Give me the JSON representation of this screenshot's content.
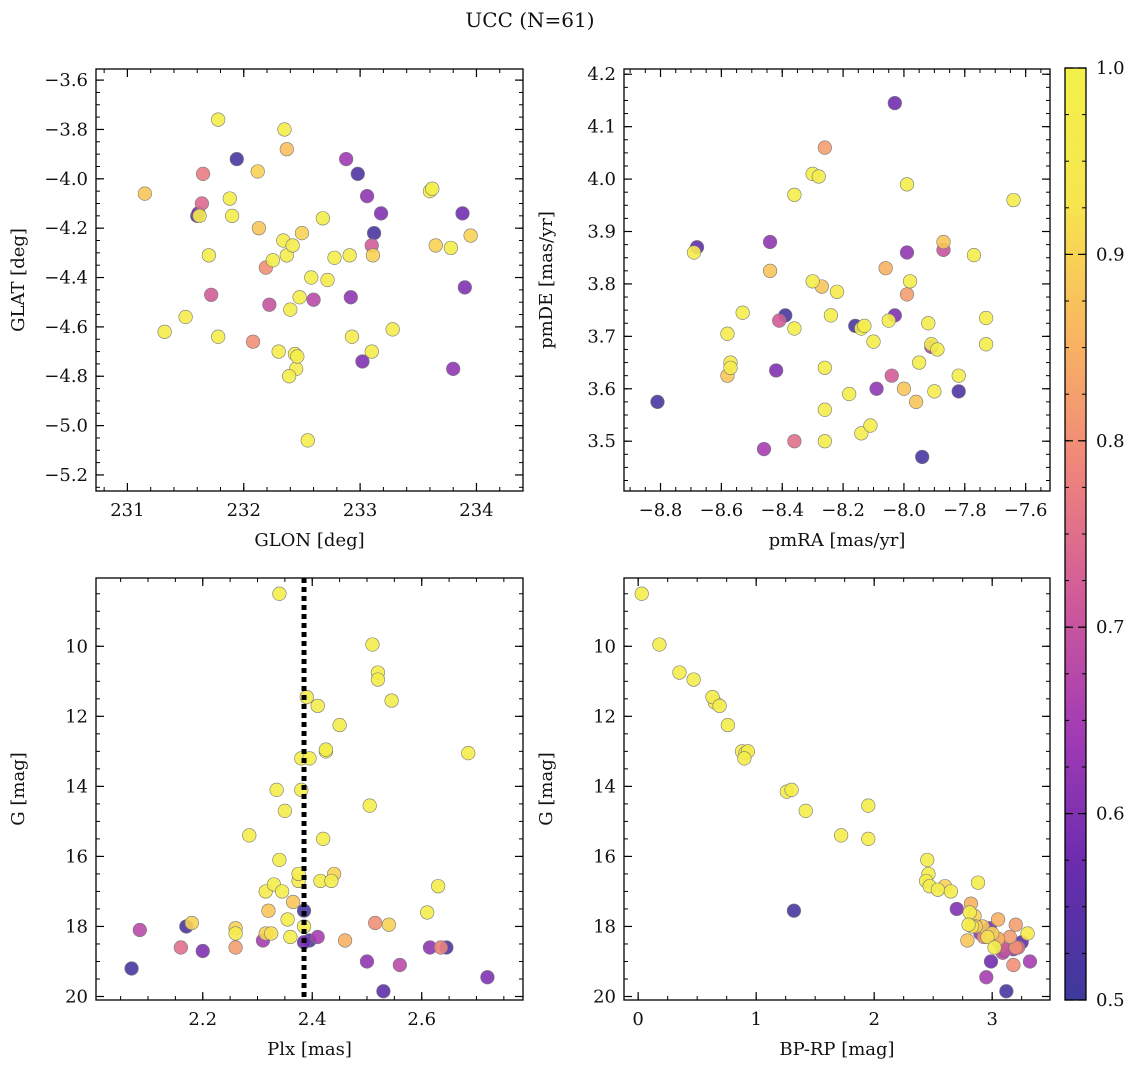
{
  "figure": {
    "title": "UCC (N=61)"
  },
  "colorbar": {
    "range": [
      0.5,
      1.0
    ],
    "ticks": [
      0.5,
      0.6,
      0.7,
      0.8,
      0.9,
      1.0
    ],
    "tick_labels": [
      "0.5",
      "0.6",
      "0.7",
      "0.8",
      "0.9",
      "1.0"
    ],
    "colormap": "plasma",
    "stops": [
      "#3d3a9c",
      "#6a2cae",
      "#a23bb5",
      "#cf5a9a",
      "#ef857c",
      "#f9b660",
      "#f7e64e",
      "#f3f04a"
    ]
  },
  "chart_data": [
    {
      "type": "scatter",
      "id": "radec",
      "xlabel": "GLON [deg]",
      "ylabel": "GLAT [deg]",
      "xlim": [
        230.73,
        234.4
      ],
      "ylim": [
        -5.265,
        -3.555
      ],
      "y_inverted": false,
      "xticks": [
        231,
        232,
        233,
        234
      ],
      "xtick_labels": [
        "231",
        "232",
        "233",
        "234"
      ],
      "yticks": [
        -3.6,
        -3.8,
        -4.0,
        -4.2,
        -4.4,
        -4.6,
        -4.8,
        -5.0,
        -5.2
      ],
      "ytick_labels": [
        "−3.6",
        "−3.8",
        "−4.0",
        "−4.2",
        "−4.4",
        "−4.6",
        "−4.8",
        "−5.0",
        "−5.2"
      ],
      "x": [
        231.15,
        231.32,
        231.5,
        231.6,
        231.62,
        231.64,
        231.65,
        231.7,
        231.72,
        231.78,
        231.78,
        231.88,
        231.9,
        231.94,
        232.08,
        232.12,
        232.13,
        232.19,
        232.22,
        232.25,
        232.3,
        232.34,
        232.35,
        232.37,
        232.37,
        232.39,
        232.4,
        232.42,
        232.44,
        232.46,
        232.48,
        232.5,
        232.55,
        232.58,
        232.6,
        232.68,
        232.72,
        232.78,
        232.88,
        232.92,
        232.93,
        232.98,
        233.02,
        233.06,
        233.1,
        233.1,
        233.12,
        233.18,
        233.28,
        233.6,
        233.62,
        233.65,
        233.78,
        233.8,
        233.88,
        233.9,
        233.95,
        231.61,
        232.45,
        233.11,
        232.91
      ],
      "y": [
        -4.06,
        -4.62,
        -4.56,
        -4.15,
        -4.15,
        -4.1,
        -3.98,
        -4.31,
        -4.47,
        -4.64,
        -3.76,
        -4.08,
        -4.15,
        -3.92,
        -4.66,
        -3.97,
        -4.2,
        -4.36,
        -4.51,
        -4.33,
        -4.7,
        -4.25,
        -3.8,
        -3.88,
        -4.31,
        -4.8,
        -4.53,
        -4.27,
        -4.71,
        -4.72,
        -4.48,
        -4.22,
        -5.06,
        -4.4,
        -4.49,
        -4.16,
        -4.41,
        -4.32,
        -3.92,
        -4.48,
        -4.64,
        -3.98,
        -4.74,
        -4.07,
        -4.27,
        -4.7,
        -4.22,
        -4.14,
        -4.61,
        -4.05,
        -4.04,
        -4.27,
        -4.28,
        -4.77,
        -4.14,
        -4.44,
        -4.23,
        -4.14,
        -4.77,
        -4.31,
        -4.31
      ],
      "membership": [
        0.88,
        0.97,
        0.97,
        0.55,
        0.98,
        0.74,
        0.77,
        0.98,
        0.72,
        0.98,
        0.98,
        0.98,
        0.98,
        0.52,
        0.8,
        0.9,
        0.88,
        0.8,
        0.7,
        0.98,
        0.97,
        0.98,
        0.98,
        0.87,
        0.98,
        0.98,
        0.98,
        0.98,
        0.98,
        0.98,
        0.98,
        0.9,
        0.98,
        0.98,
        0.68,
        0.98,
        0.96,
        0.98,
        0.64,
        0.62,
        0.97,
        0.53,
        0.6,
        0.62,
        0.72,
        0.98,
        0.52,
        0.6,
        0.98,
        0.98,
        0.99,
        0.9,
        0.98,
        0.62,
        0.58,
        0.6,
        0.9,
        0.6,
        0.97,
        0.9,
        0.98
      ]
    },
    {
      "type": "scatter",
      "id": "pm",
      "xlabel": "pmRA [mas/yr]",
      "ylabel": "pmDE [mas/yr]",
      "xlim": [
        -8.92,
        -7.52
      ],
      "ylim": [
        3.405,
        4.21
      ],
      "y_inverted": false,
      "xticks": [
        -8.8,
        -8.6,
        -8.4,
        -8.2,
        -8.0,
        -7.8,
        -7.6
      ],
      "xtick_labels": [
        "−8.8",
        "−8.6",
        "−8.4",
        "−8.2",
        "−8.0",
        "−7.8",
        "−7.6"
      ],
      "yticks": [
        3.5,
        3.6,
        3.7,
        3.8,
        3.9,
        4.0,
        4.1,
        4.2
      ],
      "ytick_labels": [
        "3.5",
        "3.6",
        "3.7",
        "3.8",
        "3.9",
        "4.0",
        "4.1",
        "4.2"
      ],
      "x": [
        -8.81,
        -8.68,
        -8.69,
        -8.58,
        -8.58,
        -8.57,
        -8.57,
        -8.53,
        -8.46,
        -8.44,
        -8.44,
        -8.42,
        -8.41,
        -8.39,
        -8.36,
        -8.36,
        -8.36,
        -8.3,
        -8.28,
        -8.27,
        -8.26,
        -8.26,
        -8.26,
        -8.24,
        -8.22,
        -8.18,
        -8.16,
        -8.14,
        -8.14,
        -8.13,
        -8.11,
        -8.1,
        -8.09,
        -8.06,
        -8.05,
        -8.04,
        -8.03,
        -8.03,
        -8.0,
        -7.99,
        -7.99,
        -7.99,
        -7.98,
        -7.96,
        -7.95,
        -7.94,
        -7.92,
        -7.91,
        -7.91,
        -7.9,
        -7.89,
        -7.87,
        -7.87,
        -7.82,
        -7.82,
        -7.77,
        -7.73,
        -7.73,
        -7.64,
        -8.26,
        -8.3
      ],
      "y": [
        3.575,
        3.87,
        3.86,
        3.705,
        3.625,
        3.65,
        3.64,
        3.745,
        3.485,
        3.825,
        3.88,
        3.635,
        3.73,
        3.74,
        3.97,
        3.715,
        3.5,
        4.01,
        4.005,
        3.795,
        3.56,
        3.64,
        3.5,
        3.74,
        3.785,
        3.59,
        3.72,
        3.715,
        3.515,
        3.72,
        3.53,
        3.69,
        3.6,
        3.83,
        3.73,
        3.625,
        3.74,
        4.145,
        3.6,
        3.78,
        3.86,
        3.99,
        3.805,
        3.575,
        3.65,
        3.47,
        3.725,
        3.68,
        3.685,
        3.595,
        3.675,
        3.865,
        3.88,
        3.625,
        3.595,
        3.855,
        3.685,
        3.735,
        3.96,
        4.06,
        3.805
      ],
      "membership": [
        0.52,
        0.55,
        0.97,
        0.97,
        0.88,
        0.97,
        0.97,
        0.98,
        0.65,
        0.88,
        0.62,
        0.6,
        0.72,
        0.52,
        0.98,
        0.98,
        0.75,
        0.98,
        0.98,
        0.88,
        0.97,
        0.98,
        0.98,
        0.98,
        0.95,
        0.98,
        0.52,
        0.98,
        0.97,
        0.98,
        0.98,
        0.98,
        0.62,
        0.85,
        0.98,
        0.72,
        0.6,
        0.58,
        0.88,
        0.82,
        0.62,
        0.98,
        0.98,
        0.88,
        0.98,
        0.52,
        0.97,
        0.66,
        0.98,
        0.97,
        0.98,
        0.7,
        0.88,
        0.98,
        0.53,
        0.98,
        0.98,
        0.98,
        0.98,
        0.82,
        0.98
      ]
    },
    {
      "type": "scatter",
      "id": "plx",
      "xlabel": "Plx [mas]",
      "ylabel": "G [mag]",
      "xlim": [
        2.005,
        2.785
      ],
      "ylim": [
        20.1,
        8.05
      ],
      "y_inverted": true,
      "vline": 2.385,
      "xticks": [
        2.2,
        2.4,
        2.6
      ],
      "xtick_labels": [
        "2.2",
        "2.4",
        "2.6"
      ],
      "yticks": [
        10,
        12,
        14,
        16,
        18,
        20
      ],
      "ytick_labels": [
        "10",
        "12",
        "14",
        "16",
        "18",
        "20"
      ],
      "x": [
        2.07,
        2.085,
        2.16,
        2.17,
        2.18,
        2.2,
        2.26,
        2.26,
        2.26,
        2.285,
        2.31,
        2.315,
        2.32,
        2.325,
        2.33,
        2.335,
        2.34,
        2.34,
        2.345,
        2.35,
        2.355,
        2.36,
        2.365,
        2.375,
        2.38,
        2.38,
        2.385,
        2.39,
        2.395,
        2.41,
        2.41,
        2.415,
        2.42,
        2.425,
        2.425,
        2.435,
        2.44,
        2.45,
        2.46,
        2.5,
        2.505,
        2.51,
        2.515,
        2.52,
        2.52,
        2.53,
        2.54,
        2.545,
        2.56,
        2.61,
        2.615,
        2.63,
        2.635,
        2.645,
        2.685,
        2.72,
        2.315,
        2.375,
        2.385,
        2.385,
        2.395
      ],
      "y": [
        19.2,
        18.1,
        18.6,
        18.0,
        17.9,
        18.7,
        18.2,
        18.05,
        18.6,
        15.4,
        18.4,
        17.0,
        17.55,
        18.2,
        16.8,
        14.1,
        16.1,
        8.5,
        17.0,
        14.7,
        17.8,
        18.3,
        17.3,
        16.5,
        14.1,
        13.2,
        18.0,
        11.45,
        13.2,
        18.3,
        11.7,
        16.7,
        15.5,
        13.0,
        12.95,
        16.7,
        16.5,
        12.25,
        18.4,
        19.0,
        14.55,
        9.95,
        17.9,
        10.75,
        10.95,
        19.85,
        17.95,
        11.55,
        19.1,
        17.6,
        18.6,
        16.85,
        18.6,
        18.6,
        13.05,
        19.45,
        18.2,
        16.7,
        17.55,
        18.45,
        18.4
      ],
      "membership": [
        0.52,
        0.68,
        0.75,
        0.52,
        0.9,
        0.6,
        0.97,
        0.9,
        0.82,
        0.98,
        0.65,
        0.95,
        0.88,
        0.92,
        0.98,
        0.98,
        0.98,
        0.98,
        0.98,
        0.98,
        0.98,
        0.98,
        0.88,
        0.98,
        0.98,
        0.98,
        0.98,
        0.98,
        0.98,
        0.65,
        0.98,
        0.98,
        0.98,
        0.97,
        0.98,
        0.98,
        0.9,
        0.98,
        0.85,
        0.62,
        0.98,
        0.98,
        0.8,
        0.98,
        0.98,
        0.55,
        0.9,
        0.98,
        0.68,
        0.98,
        0.62,
        0.98,
        0.78,
        0.53,
        0.98,
        0.6,
        0.9,
        0.95,
        0.52,
        0.58,
        0.53
      ]
    },
    {
      "type": "scatter",
      "id": "cmd",
      "xlabel": "BP-RP [mag]",
      "ylabel": "G [mag]",
      "xlim": [
        -0.12,
        3.49
      ],
      "ylim": [
        20.1,
        8.05
      ],
      "y_inverted": true,
      "xticks": [
        0,
        1,
        2,
        3
      ],
      "xtick_labels": [
        "0",
        "1",
        "2",
        "3"
      ],
      "yticks": [
        10,
        12,
        14,
        16,
        18,
        20
      ],
      "ytick_labels": [
        "10",
        "12",
        "14",
        "16",
        "18",
        "20"
      ],
      "x": [
        0.03,
        0.18,
        0.35,
        0.47,
        0.63,
        0.65,
        0.69,
        0.76,
        0.88,
        0.91,
        0.93,
        0.9,
        1.26,
        1.3,
        1.42,
        1.72,
        1.95,
        1.95,
        2.45,
        2.46,
        2.44,
        2.47,
        2.54,
        2.6,
        2.65,
        2.7,
        2.82,
        2.81,
        2.83,
        2.88,
        2.8,
        2.85,
        2.9,
        2.92,
        2.96,
        2.98,
        3.0,
        3.02,
        3.05,
        3.05,
        3.08,
        3.1,
        3.12,
        3.15,
        3.18,
        3.2,
        3.22,
        3.25,
        3.3,
        3.32,
        2.95,
        3.12,
        1.32,
        2.79,
        2.93,
        3.05,
        3.09,
        2.99,
        3.2,
        3.18,
        2.86
      ],
      "y": [
        8.5,
        9.95,
        10.75,
        10.95,
        11.45,
        11.6,
        11.7,
        12.25,
        13.0,
        13.05,
        13.0,
        13.2,
        14.15,
        14.1,
        14.7,
        15.4,
        14.55,
        15.5,
        16.1,
        16.5,
        16.7,
        16.85,
        16.95,
        16.85,
        17.0,
        17.5,
        17.35,
        17.6,
        18.0,
        16.75,
        17.95,
        17.7,
        18.2,
        18.0,
        18.3,
        18.05,
        18.2,
        18.6,
        17.8,
        18.35,
        18.55,
        18.7,
        18.65,
        18.3,
        19.1,
        17.95,
        18.6,
        18.45,
        18.2,
        19.0,
        19.45,
        19.85,
        17.55,
        18.4,
        18.3,
        18.4,
        18.75,
        19.0,
        18.6,
        18.65,
        18.0
      ],
      "membership": [
        0.98,
        0.98,
        0.98,
        0.98,
        0.98,
        0.97,
        0.98,
        0.98,
        0.98,
        0.98,
        0.98,
        0.98,
        0.98,
        0.98,
        0.98,
        0.98,
        0.98,
        0.98,
        0.98,
        0.98,
        0.98,
        0.98,
        0.98,
        0.9,
        0.98,
        0.6,
        0.85,
        0.97,
        0.92,
        0.98,
        0.97,
        0.9,
        0.62,
        0.88,
        0.92,
        0.6,
        0.9,
        0.98,
        0.85,
        0.85,
        0.72,
        0.62,
        0.7,
        0.82,
        0.8,
        0.82,
        0.75,
        0.55,
        0.95,
        0.65,
        0.65,
        0.52,
        0.52,
        0.88,
        0.8,
        0.78,
        0.68,
        0.58,
        0.8,
        0.62,
        0.9
      ]
    }
  ]
}
